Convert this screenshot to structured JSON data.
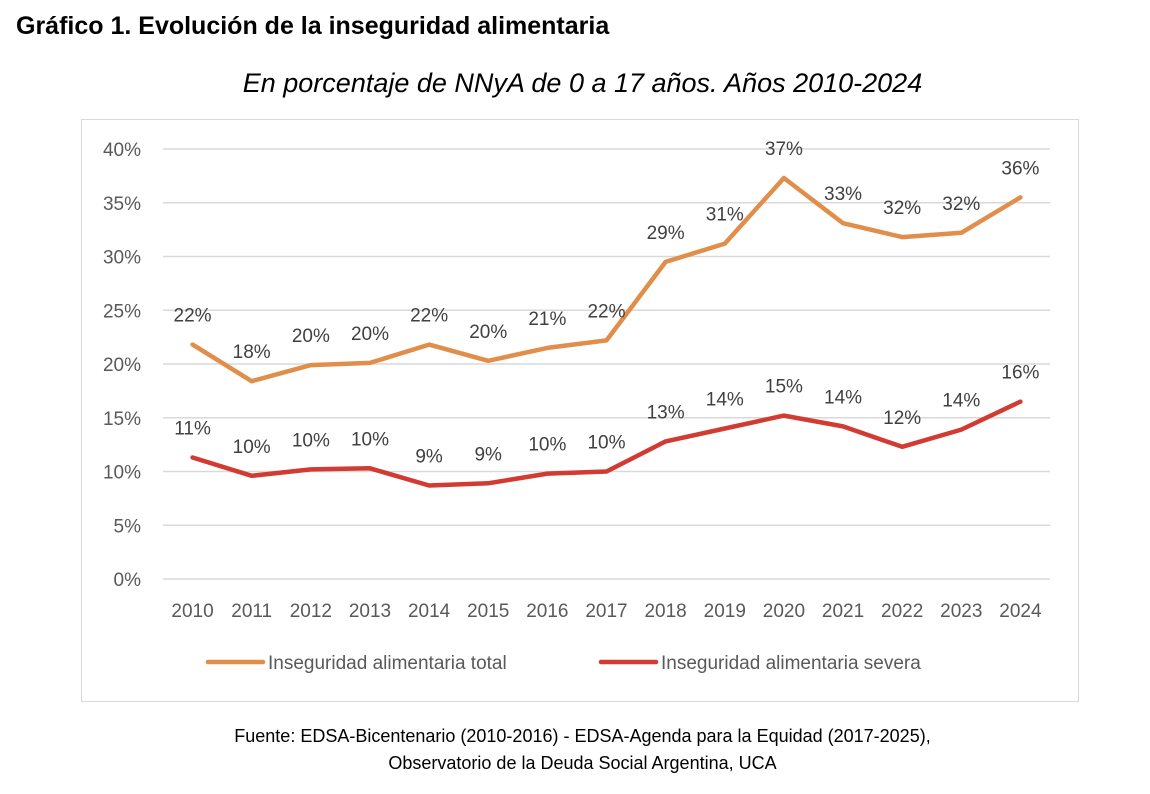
{
  "figure": {
    "title": "Gráfico 1. Evolución de la inseguridad alimentaria",
    "subtitle": "En porcentaje de NNyA de 0 a 17 años. Años 2010-2024",
    "source_line1": "Fuente: EDSA-Bicentenario (2010-2016) - EDSA-Agenda para la Equidad (2017-2025),",
    "source_line2": "Observatorio de la Deuda Social Argentina, UCA"
  },
  "chart_data": {
    "type": "line",
    "x": [
      "2010",
      "2011",
      "2012",
      "2013",
      "2014",
      "2015",
      "2016",
      "2017",
      "2018",
      "2019",
      "2020",
      "2021",
      "2022",
      "2023",
      "2024"
    ],
    "ylim": [
      0,
      40
    ],
    "yticks": [
      0,
      5,
      10,
      15,
      20,
      25,
      30,
      35,
      40
    ],
    "ytick_labels": [
      "0%",
      "5%",
      "10%",
      "15%",
      "20%",
      "25%",
      "30%",
      "35%",
      "40%"
    ],
    "grid": true,
    "legend_position": "bottom",
    "series": [
      {
        "name": "Inseguridad alimentaria total",
        "color": "#E08E4A",
        "values": [
          21.8,
          18.4,
          19.9,
          20.1,
          21.8,
          20.3,
          21.5,
          22.2,
          29.5,
          31.2,
          37.3,
          33.1,
          31.8,
          32.2,
          35.5
        ],
        "labels": [
          "22%",
          "18%",
          "20%",
          "20%",
          "22%",
          "20%",
          "21%",
          "22%",
          "29%",
          "31%",
          "37%",
          "33%",
          "32%",
          "32%",
          "36%"
        ]
      },
      {
        "name": "Inseguridad alimentaria severa",
        "color": "#D23B32",
        "values": [
          11.3,
          9.6,
          10.2,
          10.3,
          8.7,
          8.9,
          9.8,
          10.0,
          12.8,
          14.0,
          15.2,
          14.2,
          12.3,
          13.9,
          16.5
        ],
        "labels": [
          "11%",
          "10%",
          "10%",
          "10%",
          "9%",
          "9%",
          "10%",
          "10%",
          "13%",
          "14%",
          "15%",
          "14%",
          "12%",
          "14%",
          "16%"
        ]
      }
    ],
    "title": "En porcentaje de NNyA de 0 a 17 años. Años 2010-2024",
    "xlabel": "",
    "ylabel": ""
  }
}
